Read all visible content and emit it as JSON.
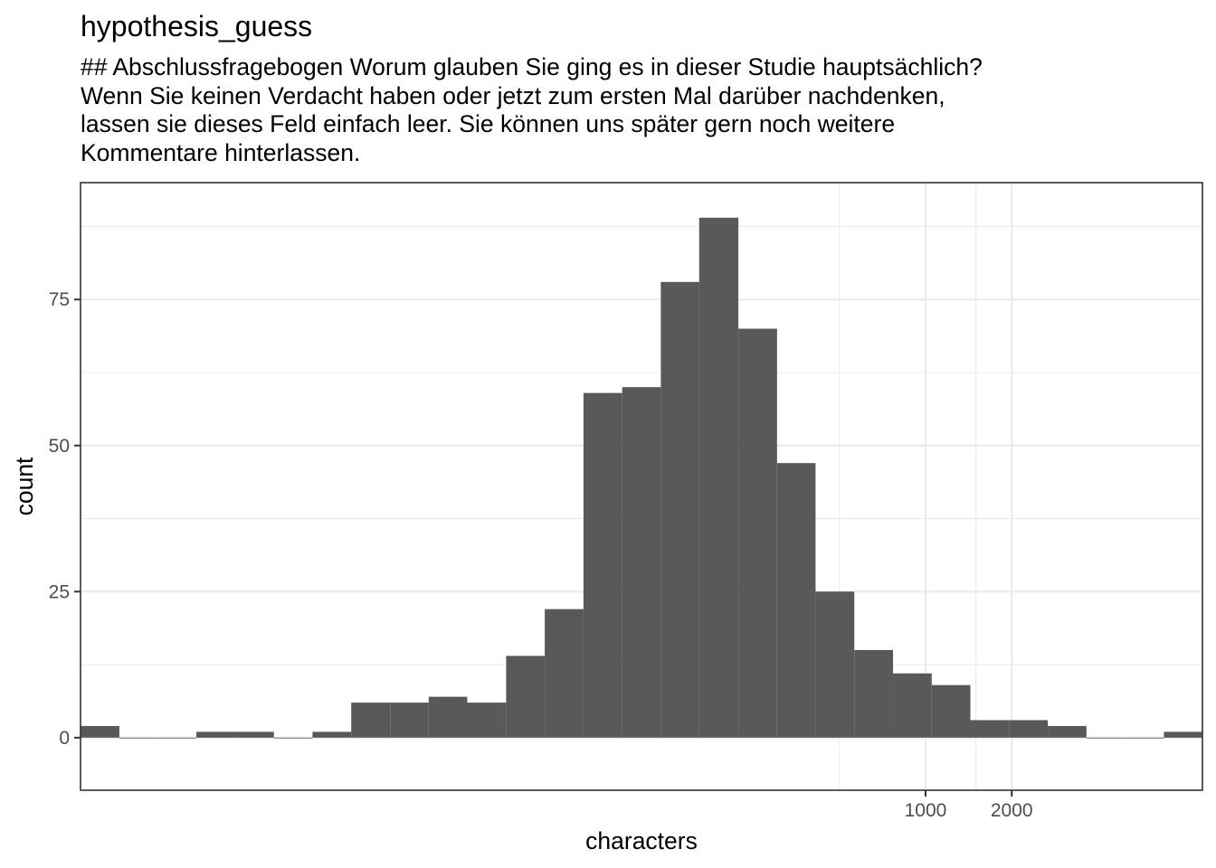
{
  "chart_data": {
    "type": "bar",
    "title": "hypothesis_guess",
    "subtitle": "## Abschlussfragebogen Worum glauben Sie ging es in dieser Studie hauptsächlich? Wenn Sie keinen Verdacht haben oder jetzt zum ersten Mal darüber nachdenken, lassen sie dieses Feld einfach leer. Sie können uns später gern noch weitere Kommentare hinterlassen.",
    "xlabel": "characters",
    "ylabel": "count",
    "x_scale": "log10",
    "ylim": [
      -9,
      95
    ],
    "x_ticks": [
      1000,
      2000
    ],
    "x_tick_labels": [
      "1000",
      "2000"
    ],
    "y_ticks": [
      0,
      25,
      50,
      75
    ],
    "y_tick_labels": [
      "0",
      "25",
      "50",
      "75"
    ],
    "grid": true,
    "bar_color": "#595959",
    "bins": [
      {
        "x0": 1.12,
        "x1": 1.53,
        "count": 2
      },
      {
        "x0": 1.53,
        "x1": 2.08,
        "count": 0
      },
      {
        "x0": 2.08,
        "x1": 2.84,
        "count": 0
      },
      {
        "x0": 2.84,
        "x1": 3.88,
        "count": 1
      },
      {
        "x0": 3.88,
        "x1": 5.3,
        "count": 1
      },
      {
        "x0": 5.3,
        "x1": 7.23,
        "count": 0
      },
      {
        "x0": 7.23,
        "x1": 9.87,
        "count": 1
      },
      {
        "x0": 9.87,
        "x1": 13.5,
        "count": 6
      },
      {
        "x0": 13.5,
        "x1": 18.4,
        "count": 6
      },
      {
        "x0": 18.4,
        "x1": 25.1,
        "count": 7
      },
      {
        "x0": 25.1,
        "x1": 34.3,
        "count": 6
      },
      {
        "x0": 34.3,
        "x1": 46.8,
        "count": 14
      },
      {
        "x0": 46.8,
        "x1": 63.9,
        "count": 22
      },
      {
        "x0": 63.9,
        "x1": 87.2,
        "count": 59
      },
      {
        "x0": 87.2,
        "x1": 119,
        "count": 60
      },
      {
        "x0": 119,
        "x1": 162,
        "count": 78
      },
      {
        "x0": 162,
        "x1": 222,
        "count": 89
      },
      {
        "x0": 222,
        "x1": 303,
        "count": 70
      },
      {
        "x0": 303,
        "x1": 413,
        "count": 47
      },
      {
        "x0": 413,
        "x1": 564,
        "count": 25
      },
      {
        "x0": 564,
        "x1": 770,
        "count": 15
      },
      {
        "x0": 770,
        "x1": 1051,
        "count": 11
      },
      {
        "x0": 1051,
        "x1": 1434,
        "count": 9
      },
      {
        "x0": 1434,
        "x1": 1958,
        "count": 3
      },
      {
        "x0": 1958,
        "x1": 2673,
        "count": 3
      },
      {
        "x0": 2673,
        "x1": 3648,
        "count": 2
      },
      {
        "x0": 3648,
        "x1": 4979,
        "count": 0
      },
      {
        "x0": 4979,
        "x1": 6797,
        "count": 0
      },
      {
        "x0": 6797,
        "x1": 9278,
        "count": 1
      }
    ]
  }
}
